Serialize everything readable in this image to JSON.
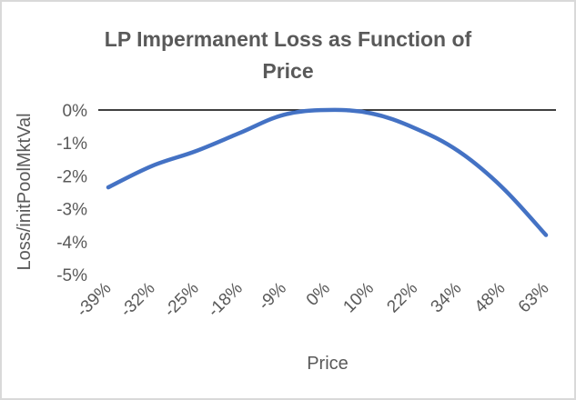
{
  "chart_data": {
    "type": "line",
    "title": "LP Impermanent Loss as Function of Price",
    "title_lines": [
      "LP Impermanent Loss as Function of",
      "Price"
    ],
    "xlabel": "Price",
    "ylabel": "Loss/initPoolMktVal",
    "categories": [
      "-39%",
      "-32%",
      "-25%",
      "-18%",
      "-9%",
      "0%",
      "10%",
      "22%",
      "34%",
      "48%",
      "63%"
    ],
    "series": [
      {
        "name": "Loss/initPoolMktVal",
        "values": [
          -2.35,
          -1.7,
          -1.25,
          -0.7,
          -0.15,
          0.0,
          -0.1,
          -0.55,
          -1.25,
          -2.35,
          -3.8
        ],
        "color": "#4472c4"
      }
    ],
    "y_ticks": [
      "0%",
      "-1%",
      "-2%",
      "-3%",
      "-4%",
      "-5%"
    ],
    "ylim": [
      -5,
      0
    ],
    "grid": false,
    "legend": "none",
    "zero_line_color": "#000000"
  }
}
